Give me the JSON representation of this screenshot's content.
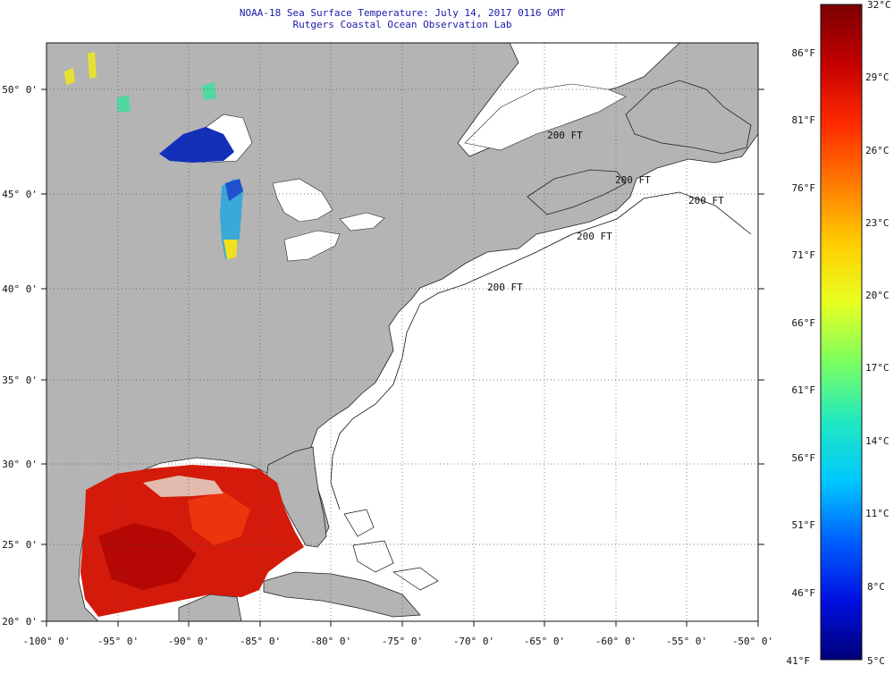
{
  "header": {
    "title": "NOAA-18 Sea Surface Temperature:  July 14, 2017 0116 GMT",
    "subtitle": "Rutgers Coastal Ocean Observation Lab"
  },
  "map": {
    "lon_range": [
      -100,
      -50
    ],
    "lat_range": [
      20,
      52.5
    ],
    "lon_tick_labels": [
      "-100° 0'",
      "-95° 0'",
      "-90° 0'",
      "-85° 0'",
      "-80° 0'",
      "-75° 0'",
      "-70° 0'",
      "-65° 0'",
      "-60° 0'",
      "-55° 0'",
      "-50° 0'"
    ],
    "lat_tick_labels": [
      "20° 0'",
      "25° 0'",
      "30° 0'",
      "35° 0'",
      "40° 0'",
      "45° 0'",
      "50° 0'"
    ],
    "contour_labels": [
      "200 FT",
      "200 FT",
      "200 FT",
      "200 FT",
      "200 FT"
    ],
    "colors": {
      "land": "#b4b4b4",
      "ocean_no_data": "#ffffff",
      "grid": "#555555"
    }
  },
  "colorbar": {
    "celsius_labels": [
      "32°C",
      "29°C",
      "26°C",
      "23°C",
      "20°C",
      "17°C",
      "14°C",
      "11°C",
      "8°C",
      "5°C"
    ],
    "fahrenheit_labels": [
      "86°F",
      "81°F",
      "76°F",
      "71°F",
      "66°F",
      "61°F",
      "56°F",
      "51°F",
      "46°F",
      "41°F"
    ],
    "gradient_stops": [
      "#7a0000",
      "#c40000",
      "#ff2a00",
      "#ff7a00",
      "#ffcc00",
      "#e8ff20",
      "#7cff60",
      "#20e8c0",
      "#00c8ff",
      "#0060ff",
      "#0010e0",
      "#00007a"
    ]
  }
}
